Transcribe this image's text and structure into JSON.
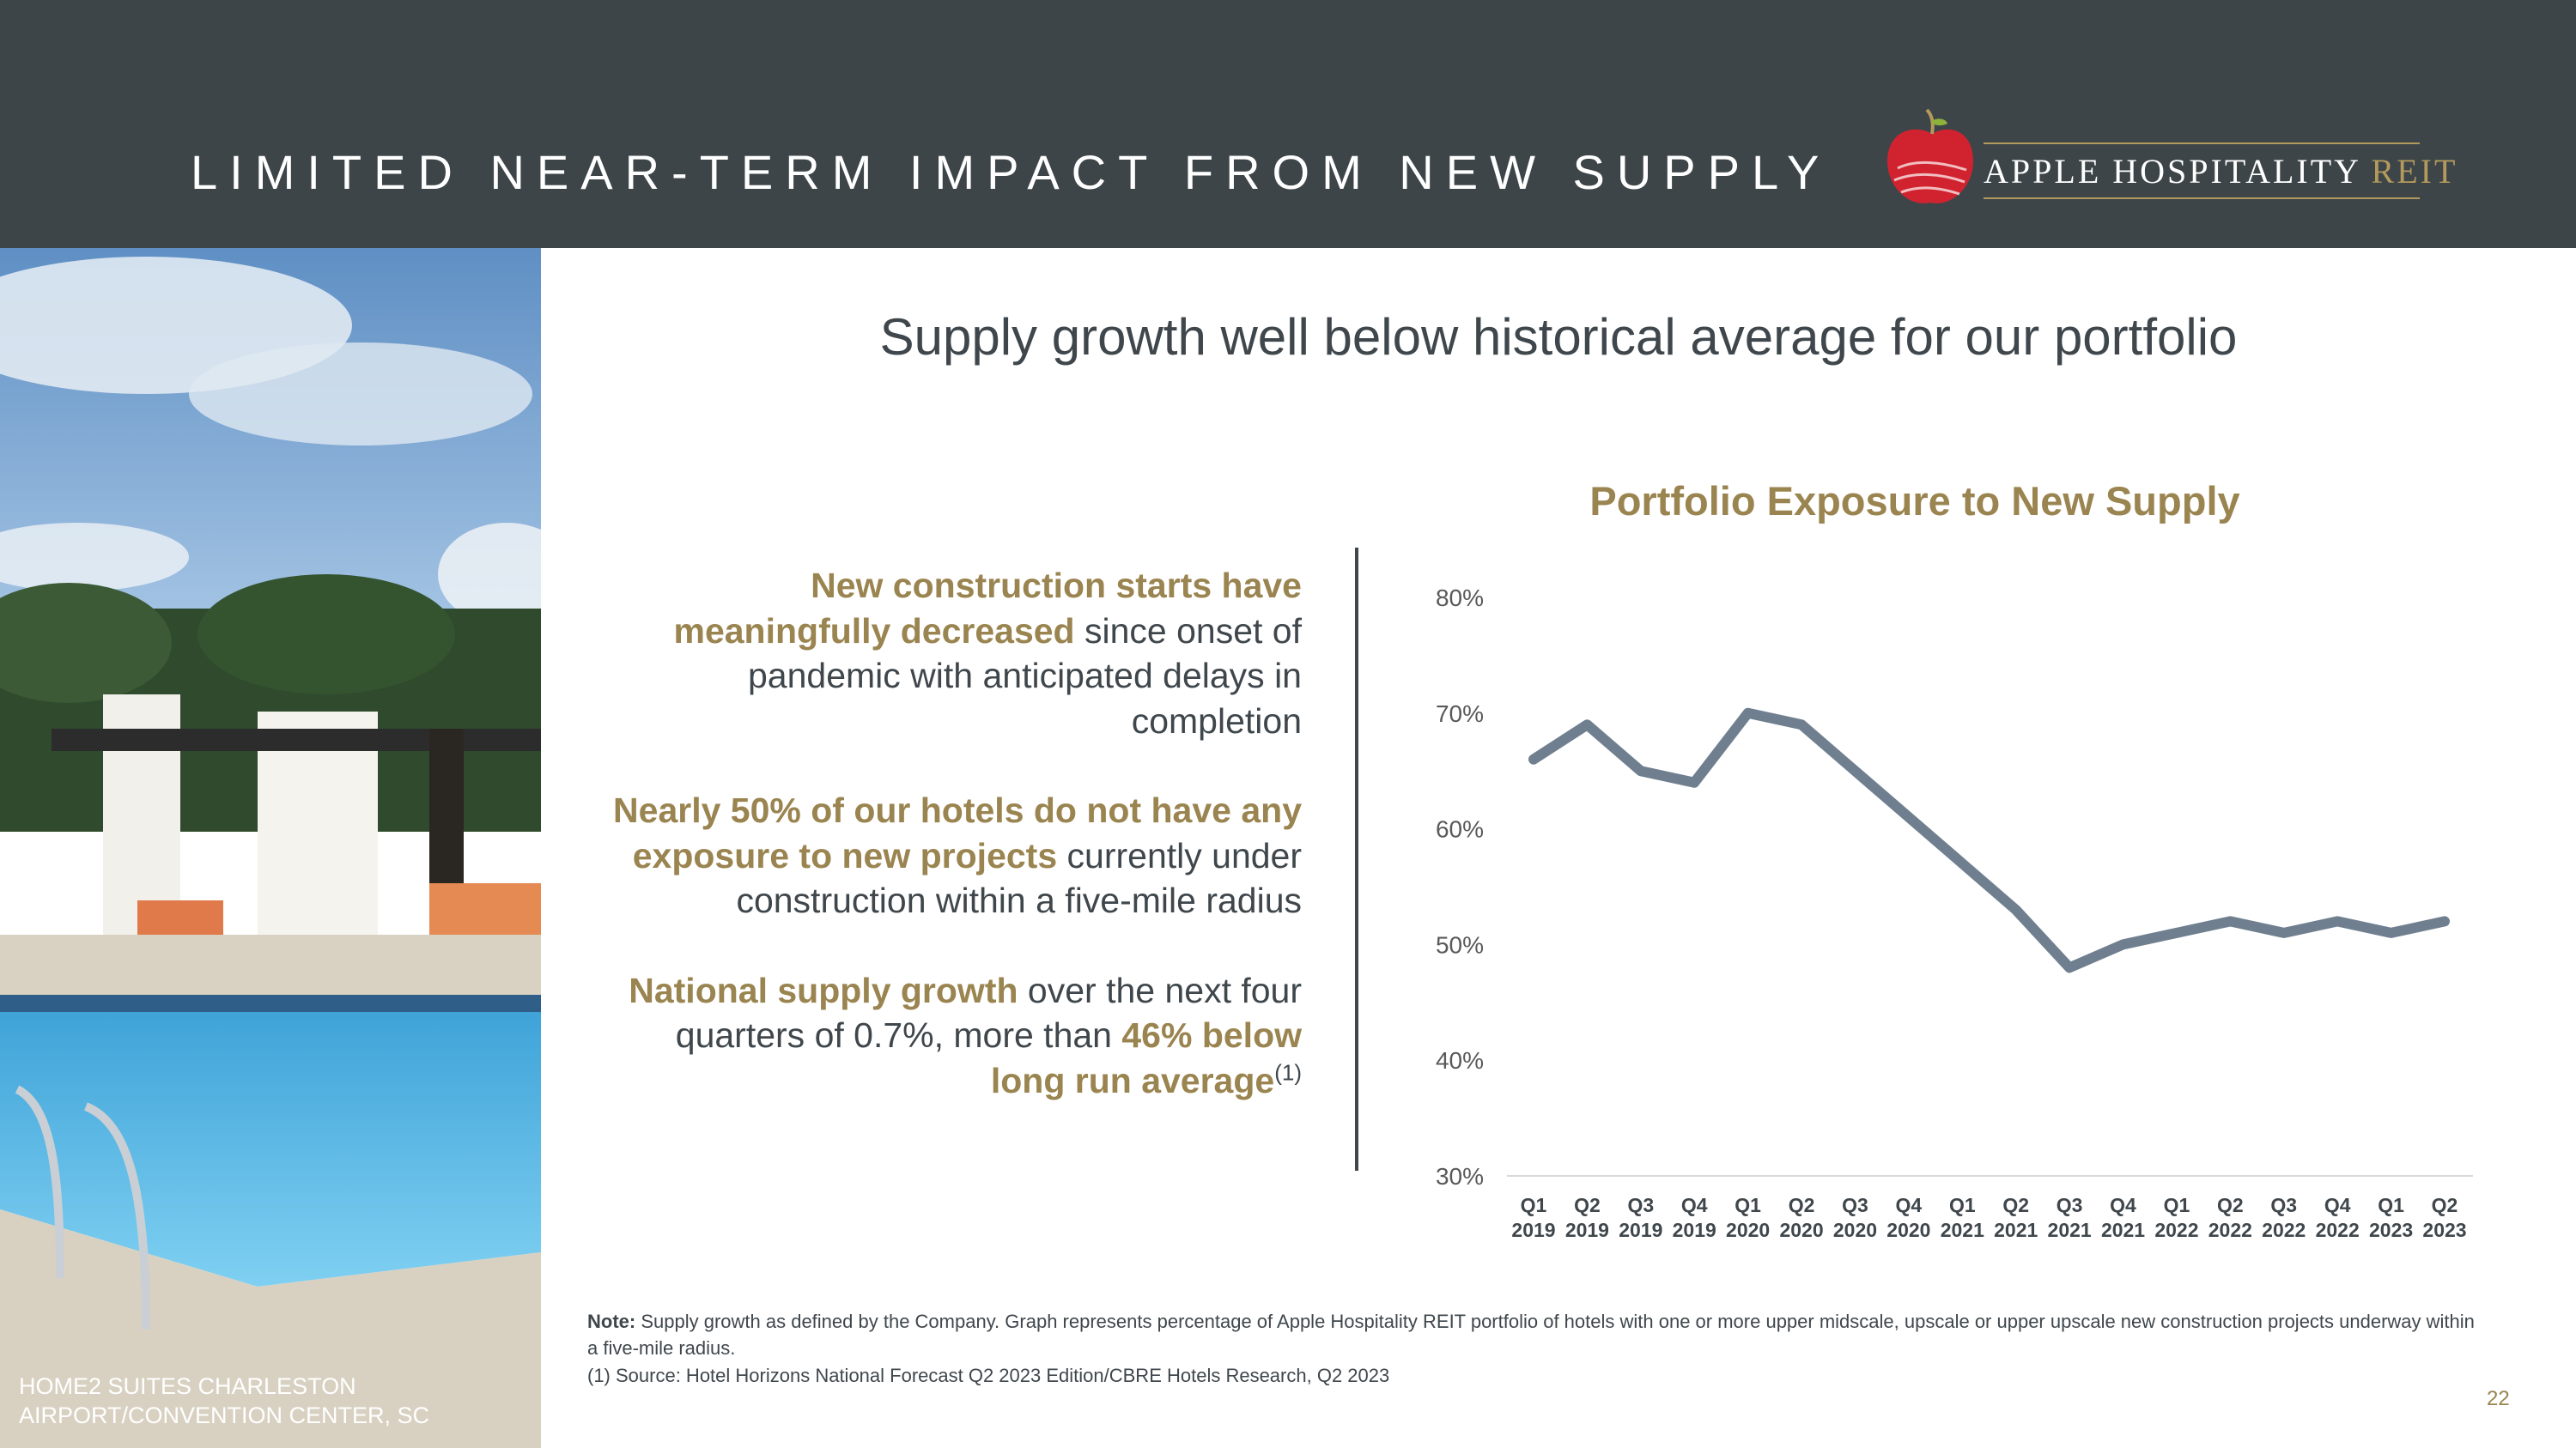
{
  "header": {
    "title": "LIMITED NEAR-TERM IMPACT FROM NEW SUPPLY",
    "logo_main": "APPLE HOSPITALITY",
    "logo_reit": "REIT"
  },
  "photo": {
    "caption_line1": "HOME2 SUITES CHARLESTON",
    "caption_line2": "AIRPORT/CONVENTION CENTER, SC"
  },
  "subtitle": "Supply growth well below historical average for our portfolio",
  "bullets": [
    {
      "hl": "New construction starts have meaningfully decreased",
      "rest": " since onset of pandemic with anticipated delays in completion"
    },
    {
      "hl": "Nearly 50% of our hotels do not have any exposure to new projects",
      "rest": " currently under construction within a five-mile radius"
    },
    {
      "hl1": "National supply growth",
      "rest": " over the next four quarters of 0.7%, more than ",
      "hl2": "46% below long run average",
      "sup": "(1)"
    }
  ],
  "chart_data": {
    "type": "line",
    "title": "Portfolio Exposure to New Supply",
    "categories": [
      "Q1 2019",
      "Q2 2019",
      "Q3 2019",
      "Q4 2019",
      "Q1 2020",
      "Q2 2020",
      "Q3 2020",
      "Q4 2020",
      "Q1 2021",
      "Q2 2021",
      "Q3 2021",
      "Q4 2021",
      "Q1 2022",
      "Q2 2022",
      "Q3 2022",
      "Q4 2022",
      "Q1 2023",
      "Q2 2023"
    ],
    "category_labels": [
      [
        "Q1",
        "2019"
      ],
      [
        "Q2",
        "2019"
      ],
      [
        "Q3",
        "2019"
      ],
      [
        "Q4",
        "2019"
      ],
      [
        "Q1",
        "2020"
      ],
      [
        "Q2",
        "2020"
      ],
      [
        "Q3",
        "2020"
      ],
      [
        "Q4",
        "2020"
      ],
      [
        "Q1",
        "2021"
      ],
      [
        "Q2",
        "2021"
      ],
      [
        "Q3",
        "2021"
      ],
      [
        "Q4",
        "2021"
      ],
      [
        "Q1",
        "2022"
      ],
      [
        "Q2",
        "2022"
      ],
      [
        "Q3",
        "2022"
      ],
      [
        "Q4",
        "2022"
      ],
      [
        "Q1",
        "2023"
      ],
      [
        "Q2",
        "2023"
      ]
    ],
    "series": [
      {
        "name": "Portfolio Exposure to New Supply",
        "values": [
          66,
          69,
          65,
          64,
          70,
          69,
          65,
          61,
          57,
          53,
          48,
          50,
          51,
          52,
          51,
          52,
          51,
          52
        ]
      }
    ],
    "ylim": [
      30,
      80
    ],
    "yticks": [
      30,
      40,
      50,
      60,
      70,
      80
    ],
    "ytick_labels": [
      "30%",
      "40%",
      "50%",
      "60%",
      "70%",
      "80%"
    ],
    "xlabel": "",
    "ylabel": "",
    "line_color": "#6f7f8f"
  },
  "note": {
    "label": "Note:",
    "text": " Supply growth as defined by the Company. Graph represents percentage of Apple Hospitality REIT portfolio of hotels with one or more upper midscale, upscale or upper upscale new construction projects underway within a five-mile radius.",
    "source": "(1) Source: Hotel Horizons National Forecast Q2 2023 Edition/CBRE Hotels Research, Q2 2023"
  },
  "page_number": "22"
}
